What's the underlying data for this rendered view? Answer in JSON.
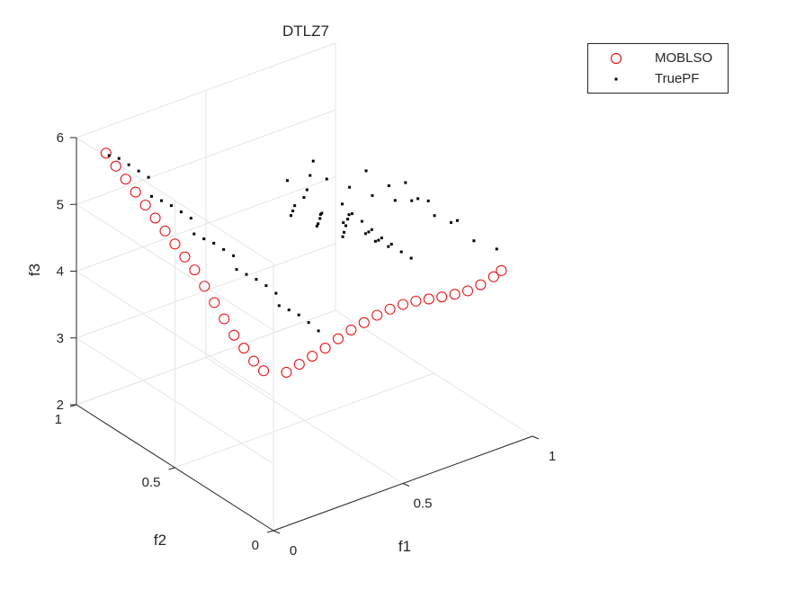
{
  "chart_data": {
    "type": "scatter3d",
    "title": "DTLZ7",
    "xlabel": "f1",
    "ylabel": "f2",
    "zlabel": "f3",
    "xlim": [
      0,
      1
    ],
    "ylim": [
      0,
      1
    ],
    "zlim": [
      2,
      6
    ],
    "xticks": [
      "0",
      "0.5",
      "1"
    ],
    "yticks": [
      "0",
      "0.5",
      "1"
    ],
    "zticks": [
      "2",
      "3",
      "4",
      "5",
      "6"
    ],
    "grid": true,
    "legend_position": "top-right outside",
    "series": [
      {
        "name": "MOBLSO",
        "marker": "circle-open",
        "color": "#e8191b",
        "points": [
          [
            0.0,
            0.05,
            4.3
          ],
          [
            0.0,
            0.1,
            4.35
          ],
          [
            0.0,
            0.15,
            4.45
          ],
          [
            0.0,
            0.2,
            4.55
          ],
          [
            0.0,
            0.25,
            4.7
          ],
          [
            0.0,
            0.3,
            4.85
          ],
          [
            0.0,
            0.35,
            5.0
          ],
          [
            0.0,
            0.4,
            5.15
          ],
          [
            0.0,
            0.45,
            5.25
          ],
          [
            0.0,
            0.5,
            5.35
          ],
          [
            0.0,
            0.55,
            5.45
          ],
          [
            0.0,
            0.6,
            5.55
          ],
          [
            0.0,
            0.65,
            5.65
          ],
          [
            0.0,
            0.7,
            5.75
          ],
          [
            0.0,
            0.75,
            5.85
          ],
          [
            0.0,
            0.8,
            5.95
          ],
          [
            0.0,
            0.85,
            6.05
          ],
          [
            0.05,
            0.0,
            4.3
          ],
          [
            0.1,
            0.0,
            4.35
          ],
          [
            0.15,
            0.0,
            4.4
          ],
          [
            0.2,
            0.0,
            4.45
          ],
          [
            0.25,
            0.0,
            4.52
          ],
          [
            0.3,
            0.0,
            4.58
          ],
          [
            0.35,
            0.0,
            4.62
          ],
          [
            0.4,
            0.0,
            4.66
          ],
          [
            0.45,
            0.0,
            4.68
          ],
          [
            0.5,
            0.0,
            4.68
          ],
          [
            0.55,
            0.0,
            4.66
          ],
          [
            0.6,
            0.0,
            4.62
          ],
          [
            0.65,
            0.0,
            4.58
          ],
          [
            0.7,
            0.0,
            4.55
          ],
          [
            0.75,
            0.0,
            4.53
          ],
          [
            0.8,
            0.0,
            4.55
          ],
          [
            0.85,
            0.0,
            4.6
          ],
          [
            0.88,
            0.0,
            4.65
          ]
        ]
      },
      {
        "name": "TruePF",
        "marker": "dot",
        "color": "#000000",
        "points": [
          [
            0.05,
            0.7,
            5.9
          ],
          [
            0.05,
            0.75,
            5.9
          ],
          [
            0.05,
            0.8,
            5.9
          ],
          [
            0.05,
            0.85,
            5.9
          ],
          [
            0.05,
            0.9,
            5.85
          ],
          [
            0.1,
            0.55,
            5.5
          ],
          [
            0.1,
            0.6,
            5.5
          ],
          [
            0.1,
            0.65,
            5.5
          ],
          [
            0.1,
            0.7,
            5.48
          ],
          [
            0.1,
            0.75,
            5.45
          ],
          [
            0.15,
            0.4,
            5.15
          ],
          [
            0.15,
            0.45,
            5.15
          ],
          [
            0.15,
            0.5,
            5.15
          ],
          [
            0.15,
            0.55,
            5.12
          ],
          [
            0.15,
            0.6,
            5.1
          ],
          [
            0.2,
            0.25,
            4.8
          ],
          [
            0.2,
            0.3,
            4.82
          ],
          [
            0.2,
            0.35,
            4.82
          ],
          [
            0.2,
            0.4,
            4.8
          ],
          [
            0.2,
            0.45,
            4.78
          ],
          [
            0.25,
            0.1,
            4.45
          ],
          [
            0.25,
            0.15,
            4.48
          ],
          [
            0.25,
            0.2,
            4.5
          ],
          [
            0.25,
            0.25,
            4.48
          ],
          [
            0.25,
            0.3,
            4.45
          ],
          [
            0.7,
            0.65,
            5.05
          ],
          [
            0.75,
            0.6,
            4.95
          ],
          [
            0.8,
            0.55,
            4.85
          ],
          [
            0.85,
            0.5,
            4.8
          ],
          [
            0.9,
            0.45,
            4.85
          ],
          [
            0.7,
            0.45,
            5.55
          ],
          [
            0.75,
            0.4,
            5.35
          ],
          [
            0.8,
            0.35,
            5.15
          ],
          [
            0.85,
            0.3,
            4.95
          ],
          [
            0.9,
            0.25,
            4.9
          ],
          [
            0.7,
            0.25,
            5.75
          ],
          [
            0.75,
            0.2,
            5.5
          ],
          [
            0.8,
            0.15,
            5.2
          ],
          [
            0.85,
            0.1,
            4.95
          ],
          [
            0.9,
            0.05,
            4.85
          ],
          [
            0.65,
            0.7,
            4.75
          ],
          [
            0.7,
            0.75,
            4.7
          ],
          [
            0.75,
            0.8,
            4.75
          ],
          [
            0.8,
            0.85,
            4.8
          ],
          [
            0.6,
            0.55,
            4.85
          ],
          [
            0.65,
            0.5,
            4.75
          ],
          [
            0.7,
            0.85,
            4.65
          ],
          [
            0.8,
            0.7,
            3.95
          ],
          [
            0.82,
            0.72,
            3.95
          ],
          [
            0.85,
            0.75,
            3.95
          ],
          [
            0.88,
            0.78,
            3.95
          ],
          [
            0.9,
            0.8,
            3.95
          ],
          [
            0.7,
            0.7,
            4.25
          ],
          [
            0.72,
            0.72,
            4.22
          ],
          [
            0.75,
            0.75,
            4.2
          ],
          [
            0.78,
            0.78,
            4.18
          ],
          [
            0.6,
            0.7,
            4.55
          ],
          [
            0.63,
            0.73,
            4.52
          ],
          [
            0.66,
            0.76,
            4.5
          ],
          [
            0.95,
            0.55,
            3.7
          ],
          [
            0.95,
            0.6,
            3.7
          ],
          [
            0.95,
            0.65,
            3.72
          ],
          [
            0.95,
            0.7,
            3.72
          ],
          [
            0.95,
            0.75,
            3.75
          ],
          [
            0.95,
            0.8,
            3.78
          ],
          [
            0.95,
            0.85,
            3.8
          ],
          [
            0.95,
            0.9,
            3.85
          ],
          [
            0.9,
            0.6,
            3.85
          ],
          [
            0.9,
            0.65,
            3.85
          ],
          [
            0.9,
            0.7,
            3.88
          ],
          [
            0.85,
            0.6,
            4.0
          ],
          [
            0.85,
            0.65,
            4.02
          ]
        ]
      }
    ]
  },
  "legend": {
    "items": [
      {
        "label": "MOBLSO"
      },
      {
        "label": "TruePF"
      }
    ]
  }
}
